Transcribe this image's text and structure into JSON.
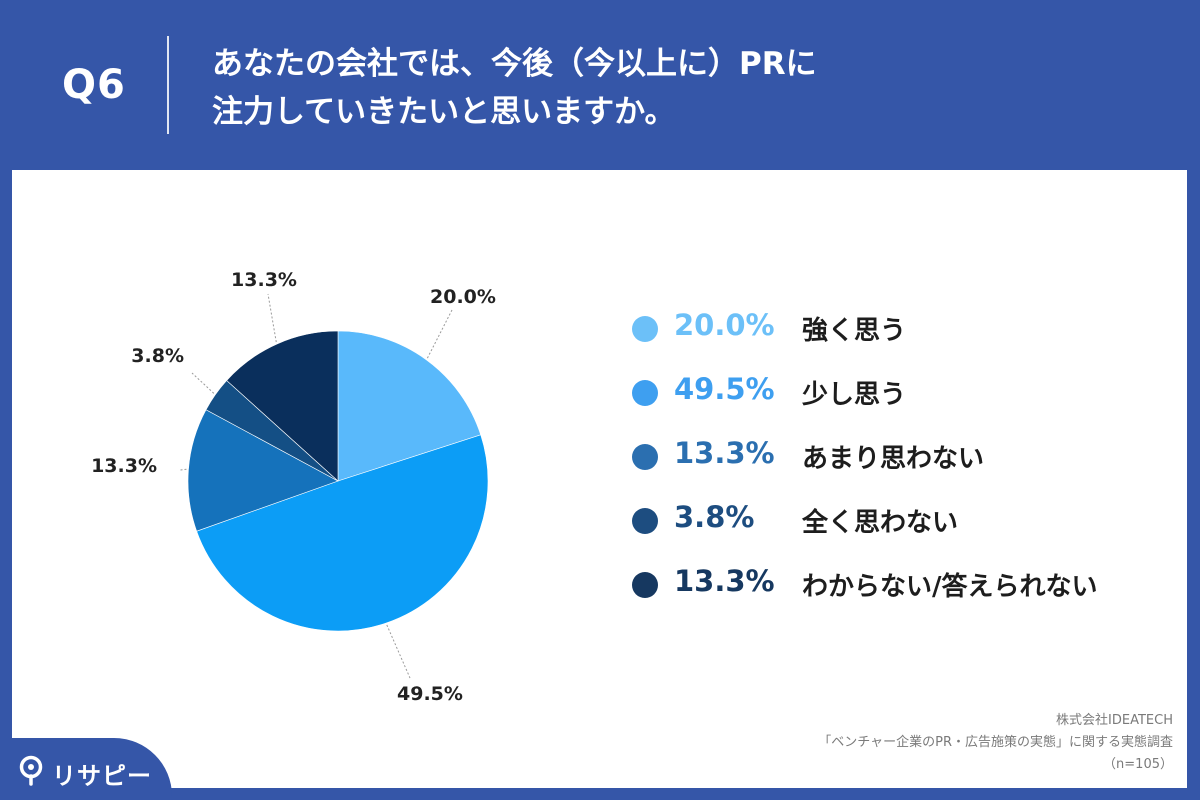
{
  "header": {
    "qnum": "Q6",
    "question_line1": "あなたの会社では、今後（今以上に）PRに",
    "question_line2": "注力していきたいと思いますか。"
  },
  "chart_data": {
    "type": "pie",
    "labels": [
      "強く思う",
      "少し思う",
      "あまり思わない",
      "全く思わない",
      "わからない/答えられない"
    ],
    "values": [
      20.0,
      49.5,
      13.3,
      3.8,
      13.3
    ],
    "value_labels": [
      "20.0%",
      "49.5%",
      "13.3%",
      "3.8%",
      "13.3%"
    ],
    "colors": [
      "#59b9fb",
      "#0c9df6",
      "#1572bb",
      "#144f85",
      "#0a2f5c"
    ],
    "legend_colors": [
      "#6cc0f8",
      "#3e9ff0",
      "#2b6fb0",
      "#1d4d80",
      "#163860"
    ],
    "legend_placement": "right",
    "start_angle": "12 o'clock",
    "direction": "clockwise"
  },
  "source": {
    "company": "株式会社IDEATECH",
    "survey": "「ベンチャー企業のPR・広告施策の実態」に関する実態調査",
    "n": "（n=105）"
  },
  "logo": {
    "text": "リサピー"
  }
}
